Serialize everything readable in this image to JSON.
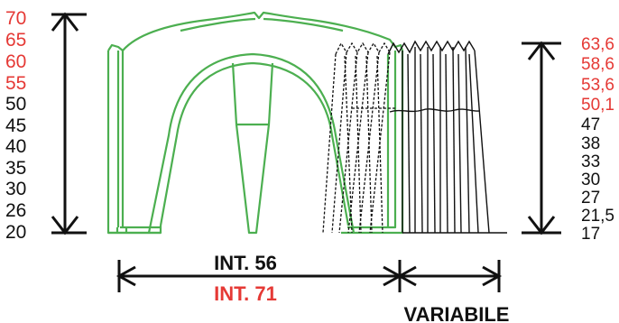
{
  "colors": {
    "red": "#e53935",
    "black": "#111111",
    "green": "#4caf50"
  },
  "left_scale": [
    {
      "label": "70",
      "color": "red"
    },
    {
      "label": "65",
      "color": "red"
    },
    {
      "label": "60",
      "color": "red"
    },
    {
      "label": "55",
      "color": "red"
    },
    {
      "label": "50",
      "color": "black"
    },
    {
      "label": "45",
      "color": "black"
    },
    {
      "label": "40",
      "color": "black"
    },
    {
      "label": "35",
      "color": "black"
    },
    {
      "label": "30",
      "color": "black"
    },
    {
      "label": "26",
      "color": "black"
    },
    {
      "label": "20",
      "color": "black"
    }
  ],
  "right_scale": [
    {
      "label": "63,6",
      "color": "red"
    },
    {
      "label": "58,6",
      "color": "red"
    },
    {
      "label": "53,6",
      "color": "red"
    },
    {
      "label": "50,1",
      "color": "red"
    },
    {
      "label": "47",
      "color": "black"
    },
    {
      "label": "38",
      "color": "black"
    },
    {
      "label": "33",
      "color": "black"
    },
    {
      "label": "30",
      "color": "black"
    },
    {
      "label": "27",
      "color": "black"
    },
    {
      "label": "21,5",
      "color": "black"
    },
    {
      "label": "17",
      "color": "black"
    }
  ],
  "dimensions": {
    "int_56": "INT. 56",
    "int_71": "INT. 71",
    "variabile": "VARIABILE"
  }
}
